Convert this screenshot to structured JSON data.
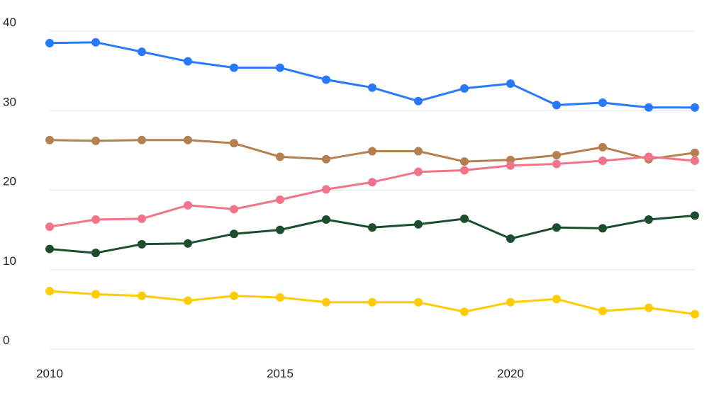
{
  "chart_data": {
    "type": "line",
    "title": "",
    "xlabel": "",
    "ylabel": "",
    "xlim": [
      2010,
      2024
    ],
    "ylim": [
      0,
      40
    ],
    "x_ticks": [
      "2010",
      "2015",
      "2020"
    ],
    "y_ticks": [
      "0",
      "10",
      "20",
      "30",
      "40"
    ],
    "grid": true,
    "legend": "none",
    "x": [
      2010,
      2011,
      2012,
      2013,
      2014,
      2015,
      2016,
      2017,
      2018,
      2019,
      2020,
      2021,
      2022,
      2023,
      2024
    ],
    "series": [
      {
        "name": "blue",
        "color": "#2979ff",
        "values": [
          38.5,
          38.6,
          37.4,
          36.2,
          35.4,
          35.4,
          33.9,
          32.9,
          31.2,
          32.8,
          33.4,
          30.7,
          31.0,
          30.4,
          30.4
        ]
      },
      {
        "name": "brown",
        "color": "#b5804f",
        "values": [
          26.3,
          26.2,
          26.3,
          26.3,
          25.9,
          24.2,
          23.9,
          24.9,
          24.9,
          23.6,
          23.8,
          24.4,
          25.4,
          23.9,
          24.7
        ]
      },
      {
        "name": "pink",
        "color": "#f2748a",
        "values": [
          15.4,
          16.3,
          16.4,
          18.1,
          17.6,
          18.8,
          20.1,
          21.0,
          22.3,
          22.5,
          23.1,
          23.3,
          23.7,
          24.2,
          23.7
        ]
      },
      {
        "name": "dark-green",
        "color": "#1b4d2e",
        "values": [
          12.6,
          12.1,
          13.2,
          13.3,
          14.5,
          15.0,
          16.3,
          15.3,
          15.7,
          16.4,
          13.9,
          15.3,
          15.2,
          16.3,
          16.8
        ]
      },
      {
        "name": "yellow",
        "color": "#ffcc00",
        "values": [
          7.3,
          6.9,
          6.7,
          6.1,
          6.7,
          6.5,
          5.9,
          5.9,
          5.9,
          4.7,
          5.9,
          6.3,
          4.8,
          5.2,
          4.4
        ]
      }
    ]
  }
}
